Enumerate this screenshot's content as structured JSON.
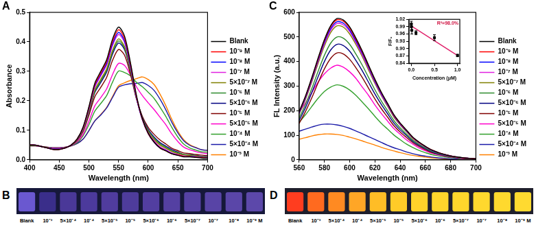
{
  "chart_data": [
    {
      "panel": "A",
      "type": "line",
      "x_label": "Wavelength (nm)",
      "y_label": "Absorbance",
      "x": [
        400,
        410,
        420,
        430,
        440,
        450,
        460,
        470,
        480,
        490,
        500,
        510,
        520,
        530,
        540,
        550,
        560,
        570,
        580,
        590,
        600,
        610,
        620,
        630,
        640,
        650,
        660,
        670,
        680,
        690,
        700
      ],
      "xlim": [
        400,
        700
      ],
      "xticks": [
        400,
        450,
        500,
        550,
        600,
        650,
        700
      ],
      "ylim": [
        0,
        0.5
      ],
      "yticks": [
        {
          "value": 0,
          "label": "0.0"
        },
        0.1,
        0.2,
        0.3,
        0.4,
        0.5
      ],
      "legend": "right",
      "grid": false,
      "series": [
        {
          "name": "Blank",
          "color": "#000000",
          "values": [
            0.05,
            0.05,
            0.045,
            0.04,
            0.035,
            0.035,
            0.04,
            0.05,
            0.07,
            0.11,
            0.18,
            0.26,
            0.3,
            0.34,
            0.41,
            0.45,
            0.42,
            0.33,
            0.22,
            0.14,
            0.09,
            0.06,
            0.04,
            0.03,
            0.02,
            0.015,
            0.01,
            0.01,
            0.008,
            0.006,
            0.005
          ]
        },
        {
          "name": "10⁻⁹ M",
          "color": "#ff0000",
          "values": [
            0.05,
            0.05,
            0.045,
            0.04,
            0.035,
            0.035,
            0.04,
            0.05,
            0.07,
            0.108,
            0.177,
            0.255,
            0.294,
            0.334,
            0.402,
            0.441,
            0.412,
            0.324,
            0.216,
            0.138,
            0.089,
            0.06,
            0.04,
            0.03,
            0.02,
            0.016,
            0.011,
            0.011,
            0.009,
            0.007,
            0.006
          ]
        },
        {
          "name": "10⁻⁸ M",
          "color": "#0000ff",
          "values": [
            0.05,
            0.05,
            0.045,
            0.04,
            0.036,
            0.036,
            0.04,
            0.05,
            0.069,
            0.107,
            0.174,
            0.251,
            0.289,
            0.327,
            0.394,
            0.432,
            0.403,
            0.317,
            0.212,
            0.136,
            0.088,
            0.059,
            0.04,
            0.031,
            0.021,
            0.016,
            0.011,
            0.011,
            0.01,
            0.008,
            0.007
          ]
        },
        {
          "name": "10⁻⁷ M",
          "color": "#e020e0",
          "values": [
            0.05,
            0.05,
            0.045,
            0.04,
            0.036,
            0.036,
            0.04,
            0.05,
            0.069,
            0.105,
            0.171,
            0.246,
            0.284,
            0.322,
            0.388,
            0.425,
            0.398,
            0.315,
            0.212,
            0.139,
            0.092,
            0.064,
            0.044,
            0.034,
            0.023,
            0.018,
            0.013,
            0.012,
            0.011,
            0.008,
            0.008
          ]
        },
        {
          "name": "5×10⁻⁷ M",
          "color": "#808000",
          "values": [
            0.049,
            0.049,
            0.045,
            0.041,
            0.036,
            0.036,
            0.041,
            0.049,
            0.067,
            0.103,
            0.165,
            0.237,
            0.273,
            0.309,
            0.372,
            0.41,
            0.384,
            0.306,
            0.21,
            0.139,
            0.095,
            0.068,
            0.05,
            0.039,
            0.028,
            0.021,
            0.016,
            0.015,
            0.013,
            0.01,
            0.009
          ]
        },
        {
          "name": "10⁻⁶ M",
          "color": "#2e8b2e",
          "values": [
            0.049,
            0.049,
            0.045,
            0.041,
            0.036,
            0.036,
            0.041,
            0.049,
            0.067,
            0.101,
            0.163,
            0.232,
            0.268,
            0.304,
            0.366,
            0.403,
            0.379,
            0.303,
            0.21,
            0.142,
            0.099,
            0.073,
            0.054,
            0.042,
            0.03,
            0.024,
            0.018,
            0.016,
            0.014,
            0.011,
            0.01
          ]
        },
        {
          "name": "5×10⁻⁶ M",
          "color": "#000080",
          "values": [
            0.049,
            0.049,
            0.045,
            0.041,
            0.037,
            0.037,
            0.041,
            0.049,
            0.066,
            0.1,
            0.16,
            0.228,
            0.262,
            0.298,
            0.359,
            0.396,
            0.374,
            0.301,
            0.211,
            0.144,
            0.103,
            0.077,
            0.058,
            0.046,
            0.034,
            0.026,
            0.018,
            0.017,
            0.015,
            0.012,
            0.011
          ]
        },
        {
          "name": "10⁻⁵ M",
          "color": "#800000",
          "values": [
            0.049,
            0.049,
            0.045,
            0.041,
            0.037,
            0.037,
            0.041,
            0.049,
            0.065,
            0.095,
            0.151,
            0.214,
            0.246,
            0.28,
            0.338,
            0.374,
            0.355,
            0.29,
            0.207,
            0.148,
            0.11,
            0.086,
            0.067,
            0.053,
            0.039,
            0.031,
            0.023,
            0.021,
            0.018,
            0.016,
            0.014
          ]
        },
        {
          "name": "5×10⁻⁵ M",
          "color": "#ff00cc",
          "values": [
            0.048,
            0.048,
            0.045,
            0.042,
            0.039,
            0.039,
            0.042,
            0.048,
            0.061,
            0.086,
            0.131,
            0.183,
            0.211,
            0.241,
            0.29,
            0.327,
            0.32,
            0.288,
            0.248,
            0.218,
            0.193,
            0.17,
            0.144,
            0.118,
            0.087,
            0.062,
            0.043,
            0.034,
            0.028,
            0.023,
            0.021
          ]
        },
        {
          "name": "10⁻⁴ M",
          "color": "#33a02c",
          "values": [
            0.048,
            0.048,
            0.045,
            0.042,
            0.04,
            0.04,
            0.042,
            0.048,
            0.058,
            0.081,
            0.119,
            0.165,
            0.191,
            0.218,
            0.264,
            0.301,
            0.296,
            0.285,
            0.263,
            0.248,
            0.229,
            0.208,
            0.178,
            0.146,
            0.109,
            0.077,
            0.053,
            0.04,
            0.033,
            0.027,
            0.026
          ]
        },
        {
          "name": "5×10⁻⁴ M",
          "color": "#1a1aa8",
          "values": [
            0.047,
            0.047,
            0.045,
            0.043,
            0.041,
            0.041,
            0.043,
            0.047,
            0.055,
            0.07,
            0.099,
            0.132,
            0.152,
            0.176,
            0.212,
            0.246,
            0.254,
            0.258,
            0.259,
            0.262,
            0.252,
            0.235,
            0.205,
            0.168,
            0.126,
            0.091,
            0.064,
            0.049,
            0.041,
            0.034,
            0.032
          ]
        },
        {
          "name": "10⁻³ M",
          "color": "#ff8000",
          "values": [
            0.047,
            0.047,
            0.045,
            0.043,
            0.041,
            0.041,
            0.043,
            0.047,
            0.055,
            0.07,
            0.099,
            0.132,
            0.154,
            0.178,
            0.215,
            0.251,
            0.261,
            0.269,
            0.275,
            0.281,
            0.272,
            0.255,
            0.222,
            0.182,
            0.136,
            0.097,
            0.068,
            0.051,
            0.042,
            0.034,
            0.032
          ]
        }
      ]
    },
    {
      "panel": "C",
      "type": "line",
      "x_label": "Wavelength (nm)",
      "y_label": "FL Intensity (a.u.)",
      "x": [
        560,
        565,
        570,
        575,
        580,
        585,
        590,
        595,
        600,
        605,
        610,
        615,
        620,
        625,
        630,
        635,
        640,
        645,
        650,
        655,
        660,
        665,
        670,
        675,
        680,
        685,
        690,
        695,
        700
      ],
      "xlim": [
        560,
        700
      ],
      "xticks": [
        560,
        580,
        600,
        620,
        640,
        660,
        680,
        700
      ],
      "ylim": [
        0,
        600
      ],
      "yticks": [
        0,
        100,
        200,
        300,
        400,
        500,
        600
      ],
      "legend": "right",
      "grid": false,
      "series": [
        {
          "name": "Blank",
          "color": "#000000",
          "values": [
            196,
            259,
            334,
            414,
            489,
            546,
            575,
            569,
            541,
            495,
            443,
            385,
            328,
            276,
            230,
            184,
            150,
            121,
            92,
            72,
            55,
            40,
            30,
            22,
            16,
            12,
            8,
            6,
            4
          ]
        },
        {
          "name": "10⁻⁹ M",
          "color": "#ff0000",
          "values": [
            194,
            257,
            331,
            410,
            485,
            542,
            570,
            564,
            536,
            490,
            439,
            382,
            325,
            274,
            228,
            182,
            148,
            120,
            91,
            71,
            54,
            40,
            30,
            22,
            16,
            11,
            8,
            6,
            4
          ]
        },
        {
          "name": "10⁻⁸ M",
          "color": "#0000ff",
          "values": [
            191,
            253,
            326,
            405,
            478,
            534,
            562,
            556,
            528,
            483,
            433,
            377,
            320,
            270,
            225,
            180,
            146,
            118,
            90,
            70,
            53,
            39,
            29,
            21,
            16,
            11,
            8,
            6,
            4
          ]
        },
        {
          "name": "10⁻⁷ M",
          "color": "#e020e0",
          "values": [
            189,
            250,
            322,
            400,
            472,
            527,
            555,
            549,
            522,
            477,
            427,
            372,
            316,
            266,
            222,
            178,
            144,
            117,
            89,
            69,
            53,
            39,
            29,
            21,
            16,
            11,
            8,
            6,
            4
          ]
        },
        {
          "name": "5×10⁻⁷ M",
          "color": "#808000",
          "values": [
            185,
            245,
            316,
            392,
            463,
            518,
            545,
            540,
            512,
            469,
            420,
            365,
            311,
            262,
            218,
            174,
            142,
            114,
            87,
            68,
            52,
            38,
            28,
            21,
            15,
            11,
            8,
            5,
            4
          ]
        },
        {
          "name": "10⁻⁶ M",
          "color": "#2e8b2e",
          "values": [
            170,
            225,
            290,
            360,
            425,
            475,
            500,
            495,
            470,
            430,
            385,
            335,
            285,
            240,
            200,
            160,
            130,
            105,
            80,
            63,
            48,
            35,
            26,
            19,
            14,
            10,
            7,
            5,
            4
          ]
        },
        {
          "name": "5×10⁻⁶ M",
          "color": "#000080",
          "values": [
            160,
            212,
            273,
            338,
            400,
            447,
            470,
            465,
            442,
            404,
            362,
            315,
            268,
            226,
            188,
            150,
            122,
            99,
            75,
            59,
            45,
            33,
            24,
            18,
            13,
            9,
            7,
            5,
            3
          ]
        },
        {
          "name": "10⁻⁵ M",
          "color": "#800000",
          "values": [
            148,
            196,
            252,
            313,
            370,
            413,
            435,
            431,
            409,
            374,
            335,
            291,
            248,
            209,
            174,
            139,
            113,
            91,
            70,
            54,
            41,
            30,
            23,
            17,
            12,
            9,
            6,
            4,
            3
          ]
        },
        {
          "name": "5×10⁻⁵ M",
          "color": "#ff00cc",
          "values": [
            193,
            231,
            273,
            316,
            350,
            373,
            385,
            377,
            358,
            331,
            296,
            262,
            223,
            189,
            158,
            127,
            104,
            81,
            64,
            48,
            37,
            27,
            20,
            15,
            11,
            8,
            5,
            4,
            3
          ]
        },
        {
          "name": "10⁻⁴ M",
          "color": "#33a02c",
          "values": [
            153,
            183,
            217,
            250,
            278,
            296,
            305,
            299,
            284,
            262,
            235,
            207,
            177,
            149,
            125,
            101,
            82,
            64,
            50,
            38,
            29,
            21,
            16,
            12,
            9,
            6,
            4,
            3,
            2
          ]
        },
        {
          "name": "5×10⁻⁴ M",
          "color": "#1a1aa8",
          "values": [
            116,
            125,
            133,
            141,
            145,
            145,
            142,
            136,
            128,
            117,
            106,
            94,
            83,
            71,
            59,
            49,
            41,
            32,
            25,
            19,
            15,
            11,
            8,
            6,
            4,
            3,
            2,
            2,
            1
          ]
        },
        {
          "name": "10⁻³ M",
          "color": "#ff8000",
          "values": [
            84,
            90,
            97,
            102,
            105,
            105,
            103,
            99,
            92,
            85,
            77,
            68,
            60,
            51,
            43,
            36,
            29,
            23,
            18,
            14,
            11,
            8,
            6,
            4,
            3,
            2,
            2,
            1,
            1
          ]
        }
      ]
    },
    {
      "type": "scatter",
      "x_label": "Concentration (μM)",
      "y_label": "F/F₀",
      "annotation": "R²=98.0%",
      "x": [
        0,
        0.001,
        0.01,
        0.1,
        0.5,
        1
      ],
      "values": [
        1,
        0.99,
        0.975,
        0.965,
        0.945,
        0.872
      ],
      "errors": [
        0.012,
        0.015,
        0.015,
        0.008,
        0.012,
        0.005
      ],
      "color": "#000000",
      "marker": "square",
      "fit": {
        "x": [
          0,
          1
        ],
        "values": [
          0.993,
          0.872
        ],
        "color": "#e0206a",
        "line_style": "solid"
      },
      "xlim": [
        -0.05,
        1.05
      ],
      "xticks": [
        {
          "value": 0,
          "label": "0.0"
        },
        0.5,
        {
          "value": 1,
          "label": "1.0"
        }
      ],
      "ylim": [
        0.84,
        1.02
      ],
      "yticks": [
        0.84,
        0.87,
        {
          "value": 0.9,
          "label": "0.90"
        },
        0.93,
        0.96,
        0.99,
        1.02
      ],
      "grid": false
    }
  ],
  "photos": [
    {
      "panel": "B",
      "labels": [
        "Blank",
        "10⁻³",
        "5×10⁻⁴",
        "10⁻⁴",
        "5×10⁻⁵",
        "10⁻⁵",
        "5×10⁻⁶",
        "10⁻⁶",
        "5×10⁻⁷",
        "10⁻⁷",
        "10⁻⁸",
        "10⁻⁹ M"
      ],
      "colors": [
        "#6a58d0",
        "#3a2e8a",
        "#4a3898",
        "#4c3a9c",
        "#503c9e",
        "#4e3c9c",
        "#523ea0",
        "#5440a2",
        "#5642a4",
        "#5844a6",
        "#5a46a8",
        "#5c48aa"
      ]
    },
    {
      "panel": "D",
      "labels": [
        "Blank",
        "10⁻³",
        "5×10⁻⁴",
        "10⁻⁴",
        "5×10⁻⁵",
        "10⁻⁵",
        "5×10⁻⁶",
        "10⁻⁶",
        "5×10⁻⁷",
        "10⁻⁷",
        "10⁻⁸",
        "10⁻⁹ M"
      ],
      "colors": [
        "#ff3d1f",
        "#ff6a1f",
        "#ff8a22",
        "#ffa626",
        "#ffbd26",
        "#ffcb28",
        "#ffd22a",
        "#ffd52c",
        "#ffd62c",
        "#ffd82e",
        "#ffd92e",
        "#ffda30"
      ]
    }
  ]
}
